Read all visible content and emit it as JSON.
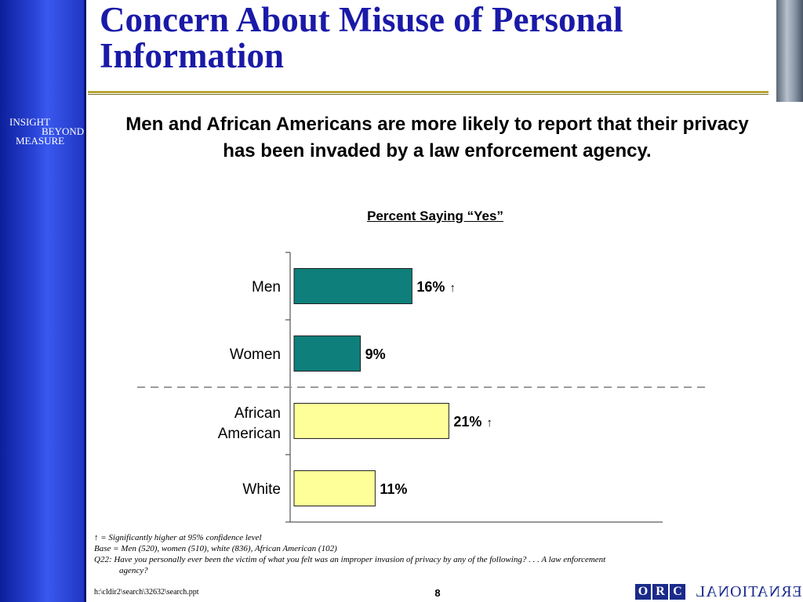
{
  "slide": {
    "title": "Concern About Misuse of Personal Information",
    "subtitle": "Men and African Americans are more likely to report that their privacy has been invaded by a law enforcement agency.",
    "logo": [
      "INSIGHT",
      "BEYOND",
      "MEASURE"
    ],
    "footnotes": {
      "sig_arrow": "↑",
      "sig_text": " = Significantly higher at 95% confidence level",
      "base": "Base = Men (520), women (510), white (836), African American (102)",
      "question_1": "Q22: Have you personally ever been the victim of what you felt was an improper invasion of privacy by any of the following? . . . A law enforcement",
      "question_2": "agency?"
    },
    "file_path": "h:\\cldir2\\search\\32632\\search.ppt",
    "page_number": "8",
    "brand": {
      "boxes": [
        "O",
        "R",
        "C"
      ],
      "word": "INTERNATIONAL"
    }
  },
  "colors": {
    "title": "#1a1aa8",
    "teal": "#0e7f7a",
    "yellow": "#ffff99",
    "divider": "#9a9a9a"
  },
  "chart_data": {
    "type": "bar",
    "orientation": "horizontal",
    "title": "Percent Saying “Yes”",
    "categories": [
      "Men",
      "Women",
      "African American",
      "White"
    ],
    "values": [
      16,
      9,
      21,
      11
    ],
    "labels": [
      "16%",
      "9%",
      "21%",
      "11%"
    ],
    "significant": [
      true,
      false,
      true,
      false
    ],
    "bar_colors": [
      "#0e7f7a",
      "#0e7f7a",
      "#ffff99",
      "#ffff99"
    ],
    "xlim": [
      0,
      40
    ],
    "grid": false
  }
}
